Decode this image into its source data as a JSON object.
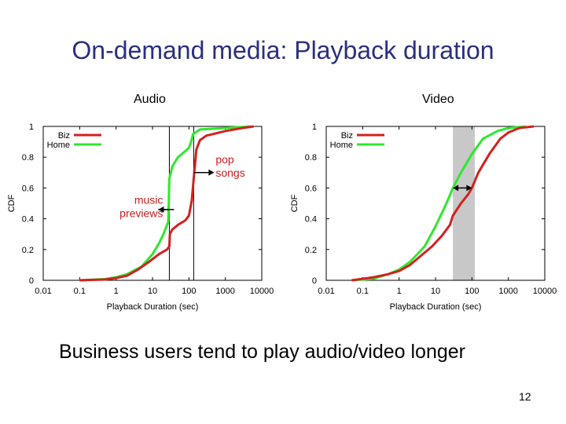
{
  "slide": {
    "title": "On-demand media: Playback duration",
    "conclusion": "Business users tend to play audio/video longer",
    "page_number": "12"
  },
  "colors": {
    "biz": "#d42020",
    "home": "#2ee82e",
    "annotation": "#c81e1e",
    "shade": "#c8c8c8"
  },
  "chart_data": [
    {
      "type": "line",
      "panel_title": "Audio",
      "xlabel": "Playback Duration (sec)",
      "ylabel": "CDF",
      "xscale": "log",
      "xlim": [
        0.01,
        10000
      ],
      "ylim": [
        0,
        1
      ],
      "xticks": [
        {
          "v": 0.01,
          "label": "0.01"
        },
        {
          "v": 0.1,
          "label": "0.1"
        },
        {
          "v": 1,
          "label": "1"
        },
        {
          "v": 10,
          "label": "10"
        },
        {
          "v": 100,
          "label": "100"
        },
        {
          "v": 1000,
          "label": "1000"
        },
        {
          "v": 10000,
          "label": "10000"
        }
      ],
      "yticks": [
        {
          "v": 0,
          "label": "0"
        },
        {
          "v": 0.2,
          "label": "0.2"
        },
        {
          "v": 0.4,
          "label": "0.4"
        },
        {
          "v": 0.6,
          "label": "0.6"
        },
        {
          "v": 0.8,
          "label": "0.8"
        },
        {
          "v": 1,
          "label": "1"
        }
      ],
      "legend_position": "top-left",
      "series": [
        {
          "name": "Biz",
          "color": "#d42020",
          "points": [
            [
              0.1,
              0
            ],
            [
              0.5,
              0.005
            ],
            [
              1,
              0.015
            ],
            [
              2,
              0.03
            ],
            [
              4,
              0.07
            ],
            [
              8,
              0.12
            ],
            [
              15,
              0.17
            ],
            [
              25,
              0.2
            ],
            [
              29,
              0.22
            ],
            [
              30,
              0.3
            ],
            [
              35,
              0.33
            ],
            [
              50,
              0.36
            ],
            [
              80,
              0.39
            ],
            [
              100,
              0.42
            ],
            [
              120,
              0.52
            ],
            [
              140,
              0.7
            ],
            [
              160,
              0.85
            ],
            [
              200,
              0.91
            ],
            [
              300,
              0.94
            ],
            [
              1000,
              0.97
            ],
            [
              3000,
              0.99
            ],
            [
              6000,
              1.0
            ]
          ]
        },
        {
          "name": "Home",
          "color": "#2ee82e",
          "points": [
            [
              0.1,
              0
            ],
            [
              0.5,
              0.008
            ],
            [
              1,
              0.02
            ],
            [
              2,
              0.04
            ],
            [
              5,
              0.09
            ],
            [
              10,
              0.17
            ],
            [
              15,
              0.24
            ],
            [
              20,
              0.3
            ],
            [
              27,
              0.38
            ],
            [
              28,
              0.5
            ],
            [
              29,
              0.66
            ],
            [
              35,
              0.74
            ],
            [
              50,
              0.8
            ],
            [
              80,
              0.84
            ],
            [
              100,
              0.86
            ],
            [
              115,
              0.9
            ],
            [
              130,
              0.95
            ],
            [
              200,
              0.98
            ],
            [
              1000,
              0.99
            ],
            [
              5000,
              1.0
            ]
          ]
        }
      ],
      "reference_lines_x": [
        29,
        135
      ],
      "annotations": [
        {
          "text": [
            "music",
            "previews"
          ],
          "arrow_to_x": 29,
          "arrow_y": 0.46
        },
        {
          "text": [
            "pop",
            "songs"
          ],
          "arrow_from_x": 135,
          "arrow_y": 0.7
        }
      ]
    },
    {
      "type": "line",
      "panel_title": "Video",
      "xlabel": "Playback Duration (sec)",
      "ylabel": "CDF",
      "xscale": "log",
      "xlim": [
        0.01,
        10000
      ],
      "ylim": [
        0,
        1
      ],
      "xticks": [
        {
          "v": 0.01,
          "label": "0.01"
        },
        {
          "v": 0.1,
          "label": "0.1"
        },
        {
          "v": 1,
          "label": "1"
        },
        {
          "v": 10,
          "label": "10"
        },
        {
          "v": 100,
          "label": "100"
        },
        {
          "v": 1000,
          "label": "1000"
        },
        {
          "v": 10000,
          "label": "10000"
        }
      ],
      "yticks": [
        {
          "v": 0,
          "label": "0"
        },
        {
          "v": 0.2,
          "label": "0.2"
        },
        {
          "v": 0.4,
          "label": "0.4"
        },
        {
          "v": 0.6,
          "label": "0.6"
        },
        {
          "v": 0.8,
          "label": "0.8"
        },
        {
          "v": 1,
          "label": "1"
        }
      ],
      "legend_position": "top-left",
      "shaded_band_x": [
        30,
        120
      ],
      "series": [
        {
          "name": "Biz",
          "color": "#d42020",
          "points": [
            [
              0.05,
              0
            ],
            [
              0.2,
              0.02
            ],
            [
              0.5,
              0.04
            ],
            [
              1,
              0.06
            ],
            [
              2,
              0.1
            ],
            [
              4,
              0.16
            ],
            [
              8,
              0.22
            ],
            [
              15,
              0.29
            ],
            [
              25,
              0.36
            ],
            [
              30,
              0.42
            ],
            [
              50,
              0.5
            ],
            [
              80,
              0.56
            ],
            [
              100,
              0.6
            ],
            [
              150,
              0.7
            ],
            [
              300,
              0.82
            ],
            [
              600,
              0.92
            ],
            [
              1000,
              0.96
            ],
            [
              2000,
              0.99
            ],
            [
              5000,
              1.0
            ]
          ]
        },
        {
          "name": "Home",
          "color": "#2ee82e",
          "points": [
            [
              0.05,
              0
            ],
            [
              0.2,
              0.01
            ],
            [
              0.5,
              0.04
            ],
            [
              1,
              0.07
            ],
            [
              2,
              0.12
            ],
            [
              5,
              0.22
            ],
            [
              10,
              0.35
            ],
            [
              20,
              0.5
            ],
            [
              30,
              0.6
            ],
            [
              50,
              0.7
            ],
            [
              100,
              0.82
            ],
            [
              200,
              0.92
            ],
            [
              500,
              0.97
            ],
            [
              1000,
              0.99
            ],
            [
              3000,
              1.0
            ]
          ]
        }
      ],
      "annotations": [
        {
          "text": [],
          "double_arrow_x": [
            30,
            100
          ],
          "arrow_y": 0.6
        }
      ]
    }
  ]
}
